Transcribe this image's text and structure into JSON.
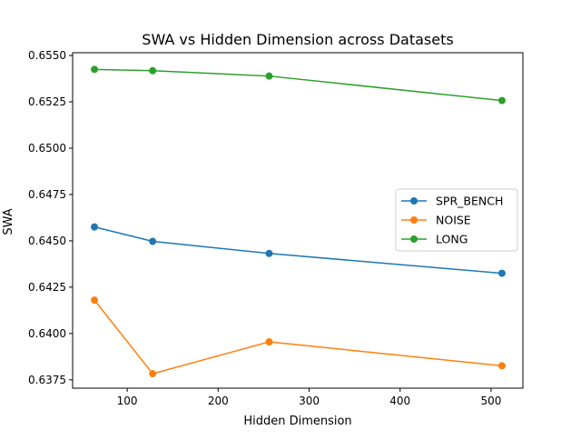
{
  "chart_data": {
    "type": "line",
    "title": "SWA vs Hidden Dimension across Datasets",
    "xlabel": "Hidden Dimension",
    "ylabel": "SWA",
    "x": [
      64,
      128,
      256,
      512
    ],
    "xlim": [
      40,
      535
    ],
    "ylim": [
      0.63705,
      0.65515
    ],
    "xticks": [
      100,
      200,
      300,
      400,
      500
    ],
    "xtick_labels": [
      "100",
      "200",
      "300",
      "400",
      "500"
    ],
    "yticks": [
      0.6375,
      0.64,
      0.6425,
      0.645,
      0.6475,
      0.65,
      0.6525,
      0.655
    ],
    "ytick_labels": [
      "0.6375",
      "0.6400",
      "0.6425",
      "0.6450",
      "0.6475",
      "0.6500",
      "0.6525",
      "0.6550"
    ],
    "grid": false,
    "legend_position": "center-right",
    "series": [
      {
        "name": "SPR_BENCH",
        "color": "#1f77b4",
        "values": [
          0.64575,
          0.64497,
          0.64432,
          0.64325
        ]
      },
      {
        "name": "NOISE",
        "color": "#ff7f0e",
        "values": [
          0.6418,
          0.63783,
          0.63955,
          0.63826
        ]
      },
      {
        "name": "LONG",
        "color": "#2ca02c",
        "values": [
          0.65425,
          0.65418,
          0.65389,
          0.65257
        ]
      }
    ]
  }
}
